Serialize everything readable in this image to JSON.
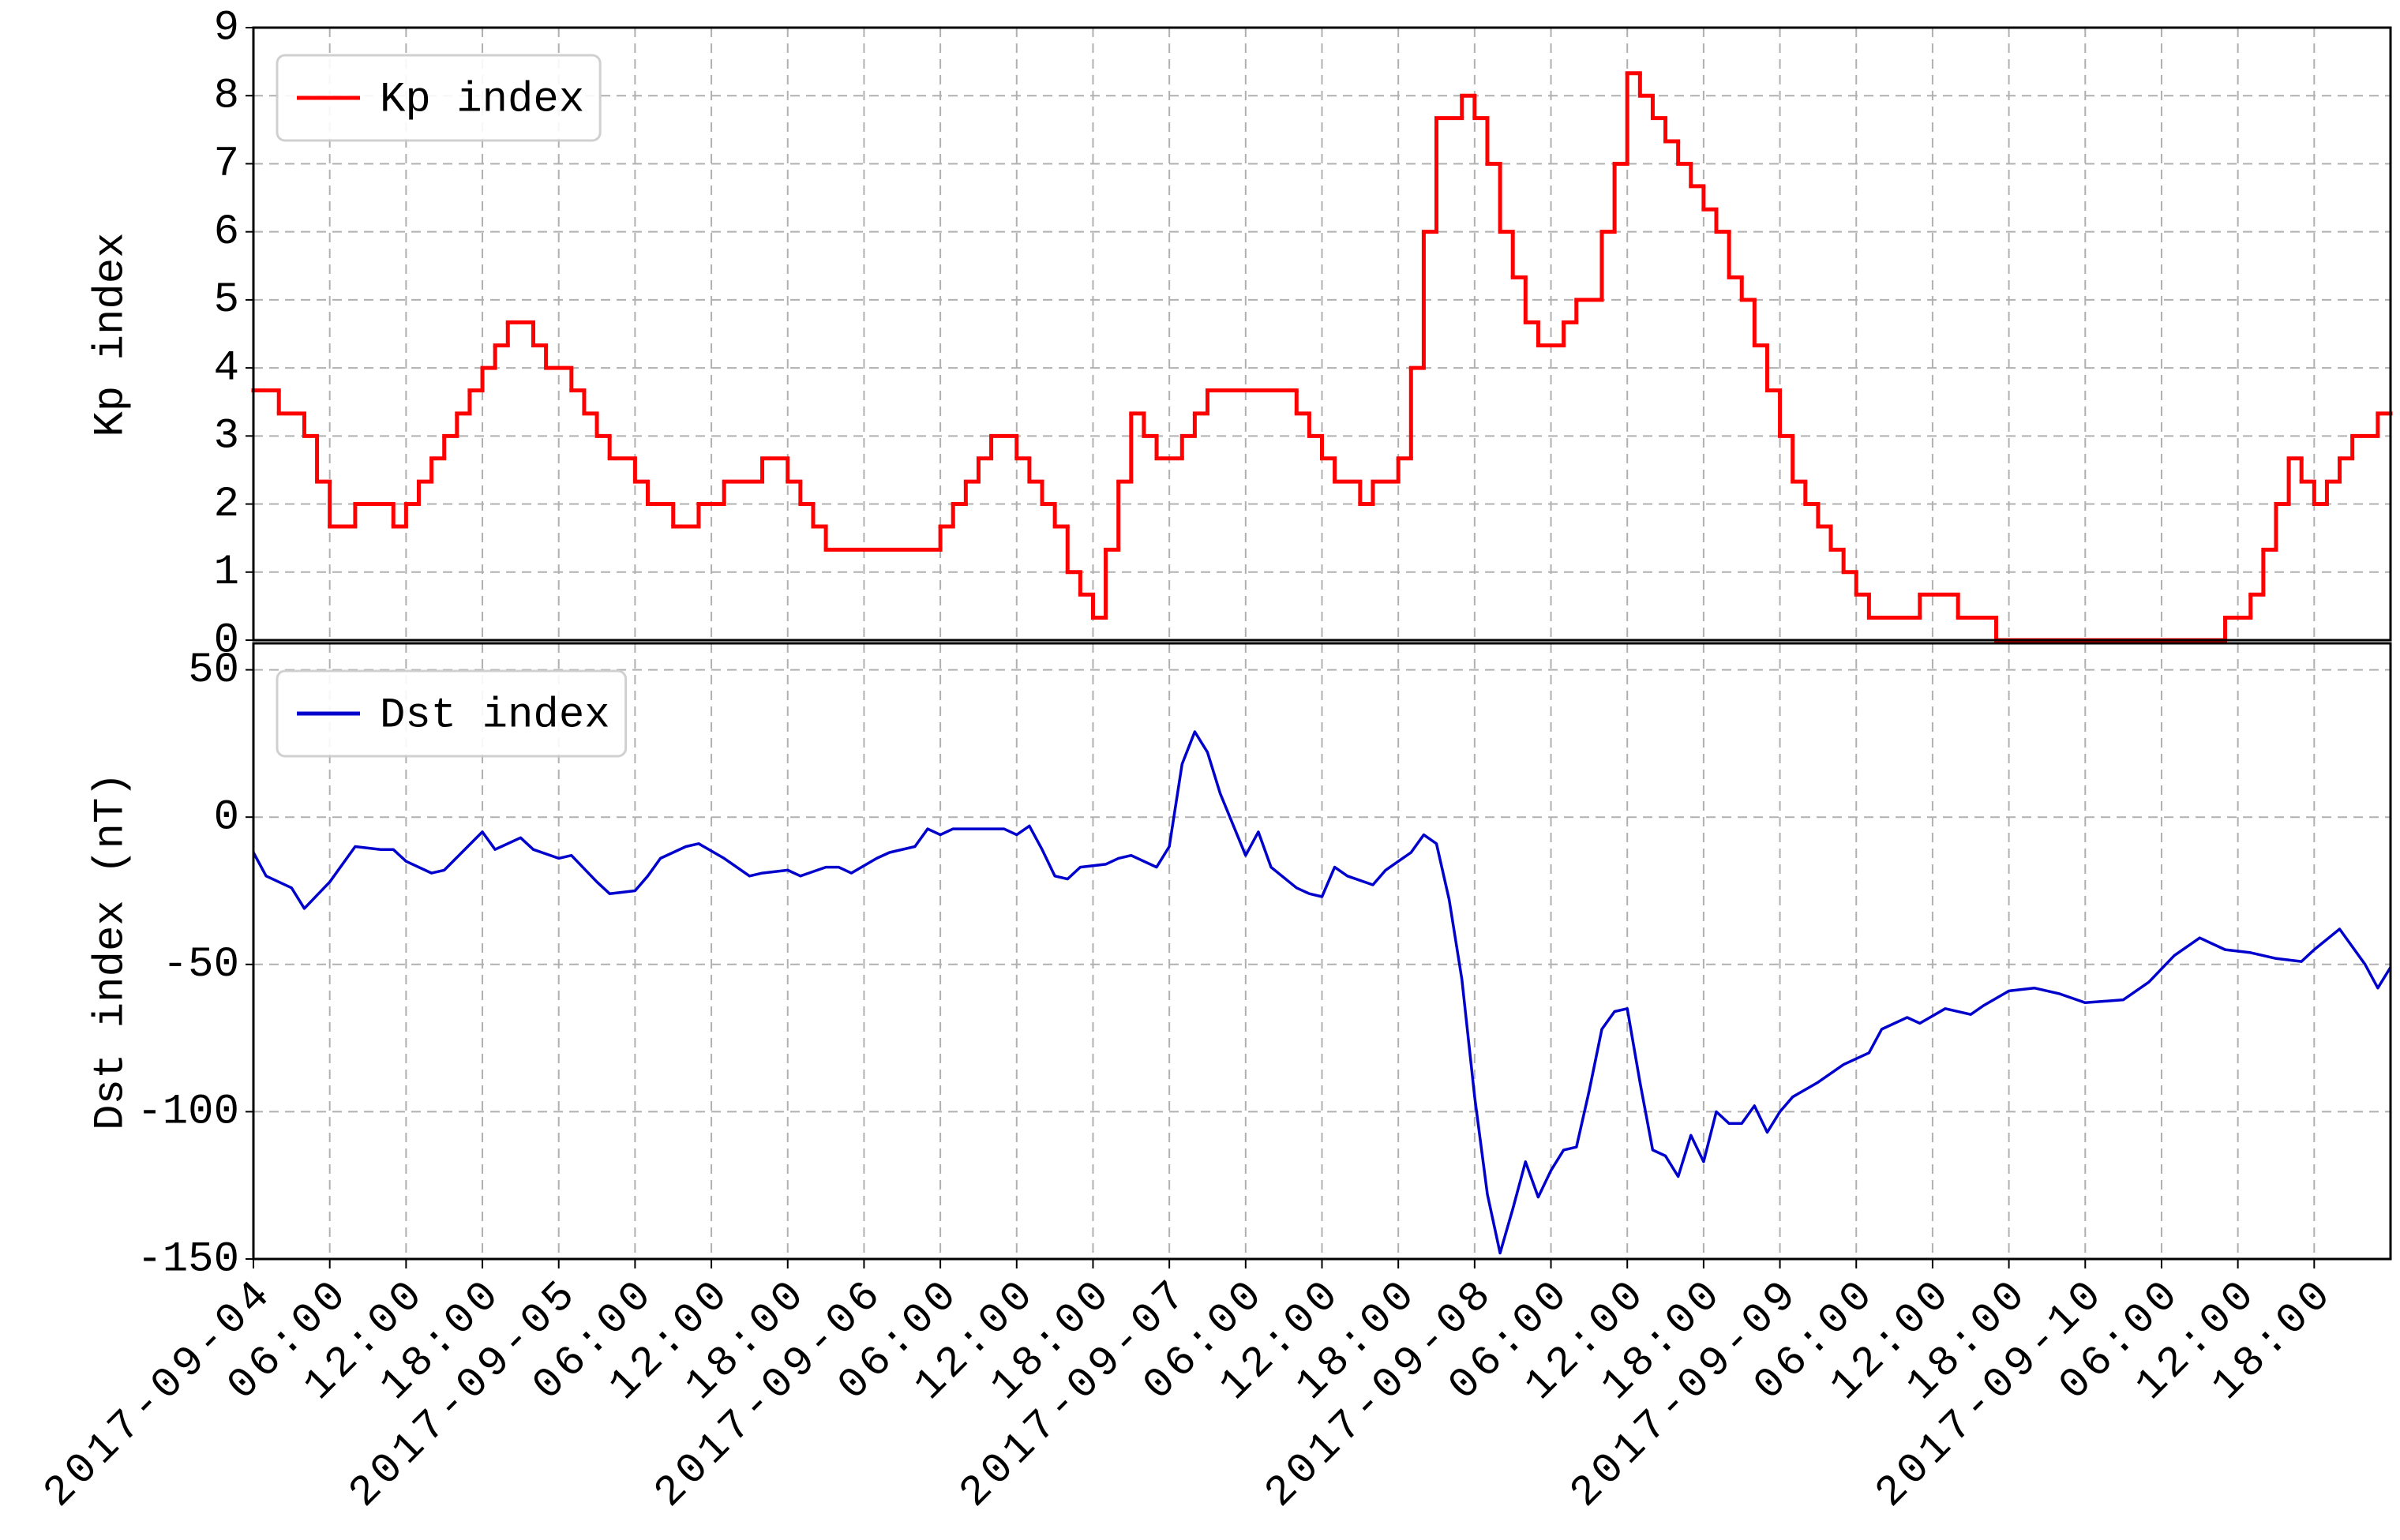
{
  "chart_data": [
    {
      "type": "step",
      "ylabel": "Kp index",
      "legend": "upper left",
      "grid": true,
      "xlim": [
        "2017-09-04 00:00",
        "2017-09-11 00:00"
      ],
      "ylim": [
        0,
        9
      ],
      "yticks": [
        0,
        1,
        2,
        3,
        4,
        5,
        6,
        7,
        8,
        9
      ],
      "x": [
        "2017-09-04 00:00",
        "2017-09-04 02:00",
        "2017-09-04 04:00",
        "2017-09-04 05:00",
        "2017-09-04 06:00",
        "2017-09-04 08:00",
        "2017-09-04 11:00",
        "2017-09-04 12:00",
        "2017-09-04 13:00",
        "2017-09-04 14:00",
        "2017-09-04 15:00",
        "2017-09-04 16:00",
        "2017-09-04 17:00",
        "2017-09-04 18:00",
        "2017-09-04 19:00",
        "2017-09-04 20:00",
        "2017-09-04 22:00",
        "2017-09-04 23:00",
        "2017-09-05 01:00",
        "2017-09-05 02:00",
        "2017-09-05 03:00",
        "2017-09-05 04:00",
        "2017-09-05 06:00",
        "2017-09-05 07:00",
        "2017-09-05 09:00",
        "2017-09-05 11:00",
        "2017-09-05 13:00",
        "2017-09-05 16:00",
        "2017-09-05 18:00",
        "2017-09-05 19:00",
        "2017-09-05 20:00",
        "2017-09-05 21:00",
        "2017-09-06 06:00",
        "2017-09-06 07:00",
        "2017-09-06 08:00",
        "2017-09-06 09:00",
        "2017-09-06 10:00",
        "2017-09-06 12:00",
        "2017-09-06 13:00",
        "2017-09-06 14:00",
        "2017-09-06 15:00",
        "2017-09-06 16:00",
        "2017-09-06 17:00",
        "2017-09-06 18:00",
        "2017-09-06 19:00",
        "2017-09-06 20:00",
        "2017-09-06 21:00",
        "2017-09-06 22:00",
        "2017-09-06 23:00",
        "2017-09-07 01:00",
        "2017-09-07 02:00",
        "2017-09-07 03:00",
        "2017-09-07 10:00",
        "2017-09-07 11:00",
        "2017-09-07 12:00",
        "2017-09-07 13:00",
        "2017-09-07 15:00",
        "2017-09-07 16:00",
        "2017-09-07 18:00",
        "2017-09-07 19:00",
        "2017-09-07 20:00",
        "2017-09-07 21:00",
        "2017-09-07 23:00",
        "2017-09-08 00:00",
        "2017-09-08 01:00",
        "2017-09-08 02:00",
        "2017-09-08 03:00",
        "2017-09-08 04:00",
        "2017-09-08 05:00",
        "2017-09-08 07:00",
        "2017-09-08 08:00",
        "2017-09-08 10:00",
        "2017-09-08 11:00",
        "2017-09-08 12:00",
        "2017-09-08 13:00",
        "2017-09-08 14:00",
        "2017-09-08 15:00",
        "2017-09-08 16:00",
        "2017-09-08 17:00",
        "2017-09-08 18:00",
        "2017-09-08 19:00",
        "2017-09-08 20:00",
        "2017-09-08 21:00",
        "2017-09-08 22:00",
        "2017-09-08 23:00",
        "2017-09-09 00:00",
        "2017-09-09 01:00",
        "2017-09-09 02:00",
        "2017-09-09 03:00",
        "2017-09-09 04:00",
        "2017-09-09 05:00",
        "2017-09-09 06:00",
        "2017-09-09 07:00",
        "2017-09-09 11:00",
        "2017-09-09 14:00",
        "2017-09-09 17:00",
        "2017-09-10 11:00",
        "2017-09-10 13:00",
        "2017-09-10 14:00",
        "2017-09-10 15:00",
        "2017-09-10 16:00",
        "2017-09-10 17:00",
        "2017-09-10 18:00",
        "2017-09-10 19:00",
        "2017-09-10 20:00",
        "2017-09-10 21:00",
        "2017-09-10 23:00"
      ],
      "series": [
        {
          "name": "Kp index",
          "color": "#ff0000",
          "values": [
            3.67,
            3.33,
            3,
            2.33,
            1.67,
            2,
            1.67,
            2,
            2.33,
            2.67,
            3,
            3.33,
            3.67,
            4,
            4.33,
            4.67,
            4.33,
            4,
            3.67,
            3.33,
            3,
            2.67,
            2.33,
            2,
            1.67,
            2,
            2.33,
            2.67,
            2.33,
            2,
            1.67,
            1.33,
            1.67,
            2,
            2.33,
            2.67,
            3,
            2.67,
            2.33,
            2,
            1.67,
            1,
            0.67,
            0.33,
            1.33,
            2.33,
            3.33,
            3,
            2.67,
            3,
            3.33,
            3.67,
            3.33,
            3,
            2.67,
            2.33,
            2,
            2.33,
            2.67,
            4,
            6,
            7.67,
            8,
            7.67,
            7,
            6,
            5.33,
            4.67,
            4.33,
            4.67,
            5,
            6,
            7,
            8.33,
            8,
            7.67,
            7.33,
            7,
            6.67,
            6.33,
            6,
            5.33,
            5,
            4.33,
            3.67,
            3,
            2.33,
            2,
            1.67,
            1.33,
            1,
            0.67,
            0.33,
            0.67,
            0.33,
            0,
            0.33,
            0.67,
            1.33,
            2,
            2.67,
            2.33,
            2,
            2.33,
            2.67,
            3,
            3.33
          ]
        }
      ]
    },
    {
      "type": "line",
      "ylabel": "Dst index (nT)",
      "legend": "upper left",
      "grid": true,
      "xlim": [
        "2017-09-04 00:00",
        "2017-09-11 00:00"
      ],
      "ylim": [
        -150,
        59
      ],
      "yticks": [
        -150,
        -100,
        -50,
        0,
        50
      ],
      "xticks": [
        {
          "value": "2017-09-04 00:00",
          "label": "2017-09-04"
        },
        {
          "value": "2017-09-04 06:00",
          "label": "06:00"
        },
        {
          "value": "2017-09-04 12:00",
          "label": "12:00"
        },
        {
          "value": "2017-09-04 18:00",
          "label": "18:00"
        },
        {
          "value": "2017-09-05 00:00",
          "label": "2017-09-05"
        },
        {
          "value": "2017-09-05 06:00",
          "label": "06:00"
        },
        {
          "value": "2017-09-05 12:00",
          "label": "12:00"
        },
        {
          "value": "2017-09-05 18:00",
          "label": "18:00"
        },
        {
          "value": "2017-09-06 00:00",
          "label": "2017-09-06"
        },
        {
          "value": "2017-09-06 06:00",
          "label": "06:00"
        },
        {
          "value": "2017-09-06 12:00",
          "label": "12:00"
        },
        {
          "value": "2017-09-06 18:00",
          "label": "18:00"
        },
        {
          "value": "2017-09-07 00:00",
          "label": "2017-09-07"
        },
        {
          "value": "2017-09-07 06:00",
          "label": "06:00"
        },
        {
          "value": "2017-09-07 12:00",
          "label": "12:00"
        },
        {
          "value": "2017-09-07 18:00",
          "label": "18:00"
        },
        {
          "value": "2017-09-08 00:00",
          "label": "2017-09-08"
        },
        {
          "value": "2017-09-08 06:00",
          "label": "06:00"
        },
        {
          "value": "2017-09-08 12:00",
          "label": "12:00"
        },
        {
          "value": "2017-09-08 18:00",
          "label": "18:00"
        },
        {
          "value": "2017-09-09 00:00",
          "label": "2017-09-09"
        },
        {
          "value": "2017-09-09 06:00",
          "label": "06:00"
        },
        {
          "value": "2017-09-09 12:00",
          "label": "12:00"
        },
        {
          "value": "2017-09-09 18:00",
          "label": "18:00"
        },
        {
          "value": "2017-09-10 00:00",
          "label": "2017-09-10"
        },
        {
          "value": "2017-09-10 06:00",
          "label": "06:00"
        },
        {
          "value": "2017-09-10 12:00",
          "label": "12:00"
        },
        {
          "value": "2017-09-10 18:00",
          "label": "18:00"
        }
      ],
      "x": [
        "2017-09-04 00:00",
        "2017-09-04 01:00",
        "2017-09-04 03:00",
        "2017-09-04 04:00",
        "2017-09-04 06:00",
        "2017-09-04 08:00",
        "2017-09-04 10:00",
        "2017-09-04 11:00",
        "2017-09-04 12:00",
        "2017-09-04 14:00",
        "2017-09-04 15:00",
        "2017-09-04 18:00",
        "2017-09-04 19:00",
        "2017-09-04 21:00",
        "2017-09-04 22:00",
        "2017-09-05 00:00",
        "2017-09-05 01:00",
        "2017-09-05 03:00",
        "2017-09-05 04:00",
        "2017-09-05 06:00",
        "2017-09-05 07:00",
        "2017-09-05 08:00",
        "2017-09-05 10:00",
        "2017-09-05 11:00",
        "2017-09-05 13:00",
        "2017-09-05 15:00",
        "2017-09-05 16:00",
        "2017-09-05 18:00",
        "2017-09-05 19:00",
        "2017-09-05 21:00",
        "2017-09-05 22:00",
        "2017-09-05 23:00",
        "2017-09-06 01:00",
        "2017-09-06 02:00",
        "2017-09-06 04:00",
        "2017-09-06 05:00",
        "2017-09-06 06:00",
        "2017-09-06 07:00",
        "2017-09-06 11:00",
        "2017-09-06 12:00",
        "2017-09-06 13:00",
        "2017-09-06 14:00",
        "2017-09-06 15:00",
        "2017-09-06 16:00",
        "2017-09-06 17:00",
        "2017-09-06 19:00",
        "2017-09-06 20:00",
        "2017-09-06 21:00",
        "2017-09-06 23:00",
        "2017-09-07 00:00",
        "2017-09-07 01:00",
        "2017-09-07 02:00",
        "2017-09-07 03:00",
        "2017-09-07 04:00",
        "2017-09-07 06:00",
        "2017-09-07 07:00",
        "2017-09-07 08:00",
        "2017-09-07 10:00",
        "2017-09-07 11:00",
        "2017-09-07 12:00",
        "2017-09-07 13:00",
        "2017-09-07 14:00",
        "2017-09-07 16:00",
        "2017-09-07 17:00",
        "2017-09-07 19:00",
        "2017-09-07 20:00",
        "2017-09-07 21:00",
        "2017-09-07 22:00",
        "2017-09-07 23:00",
        "2017-09-08 00:00",
        "2017-09-08 01:00",
        "2017-09-08 02:00",
        "2017-09-08 03:00",
        "2017-09-08 04:00",
        "2017-09-08 05:00",
        "2017-09-08 06:00",
        "2017-09-08 07:00",
        "2017-09-08 08:00",
        "2017-09-08 09:00",
        "2017-09-08 10:00",
        "2017-09-08 11:00",
        "2017-09-08 12:00",
        "2017-09-08 13:00",
        "2017-09-08 14:00",
        "2017-09-08 15:00",
        "2017-09-08 16:00",
        "2017-09-08 17:00",
        "2017-09-08 18:00",
        "2017-09-08 19:00",
        "2017-09-08 20:00",
        "2017-09-08 21:00",
        "2017-09-08 22:00",
        "2017-09-08 23:00",
        "2017-09-09 00:00",
        "2017-09-09 01:00",
        "2017-09-09 03:00",
        "2017-09-09 05:00",
        "2017-09-09 07:00",
        "2017-09-09 08:00",
        "2017-09-09 10:00",
        "2017-09-09 11:00",
        "2017-09-09 13:00",
        "2017-09-09 15:00",
        "2017-09-09 16:00",
        "2017-09-09 18:00",
        "2017-09-09 20:00",
        "2017-09-09 22:00",
        "2017-09-10 00:00",
        "2017-09-10 03:00",
        "2017-09-10 05:00",
        "2017-09-10 07:00",
        "2017-09-10 09:00",
        "2017-09-10 11:00",
        "2017-09-10 13:00",
        "2017-09-10 15:00",
        "2017-09-10 17:00",
        "2017-09-10 18:00",
        "2017-09-10 20:00",
        "2017-09-10 22:00",
        "2017-09-10 23:00",
        "2017-09-11 00:00"
      ],
      "series": [
        {
          "name": "Dst index",
          "color": "#0000cc",
          "values": [
            -12,
            -20,
            -24,
            -31,
            -22,
            -10,
            -11,
            -11,
            -15,
            -19,
            -18,
            -5,
            -11,
            -7,
            -11,
            -14,
            -13,
            -22,
            -26,
            -25,
            -20,
            -14,
            -10,
            -9,
            -14,
            -20,
            -19,
            -18,
            -20,
            -17,
            -17,
            -19,
            -14,
            -12,
            -10,
            -4,
            -6,
            -4,
            -4,
            -6,
            -3,
            -11,
            -20,
            -21,
            -17,
            -16,
            -14,
            -13,
            -17,
            -10,
            18,
            29,
            22,
            8,
            -13,
            -5,
            -17,
            -24,
            -26,
            -27,
            -17,
            -20,
            -23,
            -18,
            -12,
            -6,
            -9,
            -28,
            -55,
            -95,
            -128,
            -148,
            -133,
            -117,
            -129,
            -120,
            -113,
            -112,
            -93,
            -72,
            -66,
            -65,
            -90,
            -113,
            -115,
            -122,
            -108,
            -117,
            -100,
            -104,
            -104,
            -98,
            -107,
            -100,
            -95,
            -90,
            -84,
            -80,
            -72,
            -68,
            -70,
            -65,
            -67,
            -64,
            -59,
            -58,
            -60,
            -63,
            -62,
            -56,
            -47,
            -41,
            -45,
            -46,
            -48,
            -49,
            -45,
            -38,
            -50,
            -58,
            -51
          ]
        }
      ]
    }
  ]
}
